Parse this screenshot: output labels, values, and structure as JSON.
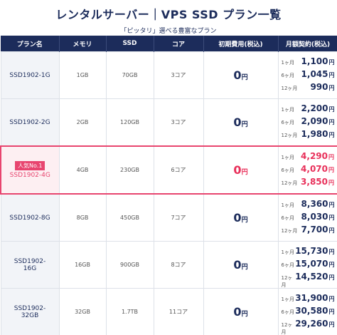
{
  "header": {
    "title": "レンタルサーバー｜VPS SSD プラン一覧",
    "subtitle": "「ピッタリ」選べる豊富なプラン"
  },
  "table": {
    "columns": [
      "プラン名",
      "メモリ",
      "SSD",
      "コア",
      "初期費用(税込)",
      "月額契約(税込)"
    ],
    "plans": [
      {
        "name": "SSD1902-1G",
        "memory": "1GB",
        "ssd": "70GB",
        "core": "3コア",
        "fee": {
          "amount": "0",
          "unit": "円"
        },
        "prices": [
          {
            "term": "1ヶ月",
            "amount": "1,100",
            "unit": "円"
          },
          {
            "term": "6ヶ月",
            "amount": "1,045",
            "unit": "円"
          },
          {
            "term": "12ヶ月",
            "amount": "990",
            "unit": "円"
          }
        ]
      },
      {
        "name": "SSD1902-2G",
        "memory": "2GB",
        "ssd": "120GB",
        "core": "3コア",
        "fee": {
          "amount": "0",
          "unit": "円"
        },
        "prices": [
          {
            "term": "1ヶ月",
            "amount": "2,200",
            "unit": "円"
          },
          {
            "term": "6ヶ月",
            "amount": "2,090",
            "unit": "円"
          },
          {
            "term": "12ヶ月",
            "amount": "1,980",
            "unit": "円"
          }
        ]
      },
      {
        "badge": "人気No.1",
        "name": "SSD1902-4G",
        "memory": "4GB",
        "ssd": "230GB",
        "core": "6コア",
        "fee": {
          "amount": "0",
          "unit": "円"
        },
        "prices": [
          {
            "term": "1ヶ月",
            "amount": "4,290",
            "unit": "円"
          },
          {
            "term": "6ヶ月",
            "amount": "4,070",
            "unit": "円"
          },
          {
            "term": "12ヶ月",
            "amount": "3,850",
            "unit": "円"
          }
        ]
      },
      {
        "name": "SSD1902-8G",
        "memory": "8GB",
        "ssd": "450GB",
        "core": "7コア",
        "fee": {
          "amount": "0",
          "unit": "円"
        },
        "prices": [
          {
            "term": "1ヶ月",
            "amount": "8,360",
            "unit": "円"
          },
          {
            "term": "6ヶ月",
            "amount": "8,030",
            "unit": "円"
          },
          {
            "term": "12ヶ月",
            "amount": "7,700",
            "unit": "円"
          }
        ]
      },
      {
        "name": "SSD1902-16G",
        "memory": "16GB",
        "ssd": "900GB",
        "core": "8コア",
        "fee": {
          "amount": "0",
          "unit": "円"
        },
        "prices": [
          {
            "term": "1ヶ月",
            "amount": "15,730",
            "unit": "円"
          },
          {
            "term": "6ヶ月",
            "amount": "15,070",
            "unit": "円"
          },
          {
            "term": "12ヶ月",
            "amount": "14,520",
            "unit": "円"
          }
        ]
      },
      {
        "name": "SSD1902-32GB",
        "memory": "32GB",
        "ssd": "1.7TB",
        "core": "11コア",
        "fee": {
          "amount": "0",
          "unit": "円"
        },
        "prices": [
          {
            "term": "1ヶ月",
            "amount": "31,900",
            "unit": "円"
          },
          {
            "term": "6ヶ月",
            "amount": "30,580",
            "unit": "円"
          },
          {
            "term": "12ヶ月",
            "amount": "29,260",
            "unit": "円"
          }
        ]
      }
    ]
  }
}
